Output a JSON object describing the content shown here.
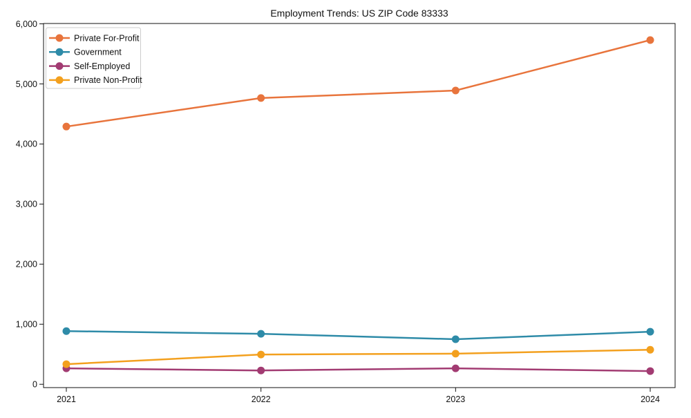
{
  "chart_data": {
    "type": "line",
    "title": "Employment Trends: US ZIP Code 83333",
    "xlabel": "",
    "ylabel": "",
    "x_categories": [
      "2021",
      "2022",
      "2023",
      "2024"
    ],
    "series": [
      {
        "name": "Private For-Profit",
        "color": "#E8743C",
        "values": [
          4290,
          4765,
          4890,
          5730
        ]
      },
      {
        "name": "Government",
        "color": "#2E8BA8",
        "values": [
          885,
          840,
          750,
          875
        ]
      },
      {
        "name": "Self-Employed",
        "color": "#A23B72",
        "values": [
          265,
          230,
          265,
          220
        ]
      },
      {
        "name": "Private Non-Profit",
        "color": "#F3A01E",
        "values": [
          335,
          495,
          510,
          575
        ]
      }
    ],
    "ylim": [
      0,
      6000
    ],
    "yticks": [
      0,
      1000,
      2000,
      3000,
      4000,
      5000,
      6000
    ],
    "ytick_labels": [
      "0",
      "1,000",
      "2,000",
      "3,000",
      "4,000",
      "5,000",
      "6,000"
    ],
    "legend_position": "upper-left",
    "grid": false
  },
  "colors": {
    "axis": "#111111",
    "text": "#111111",
    "legend_border": "#cccccc",
    "background": "#ffffff"
  }
}
